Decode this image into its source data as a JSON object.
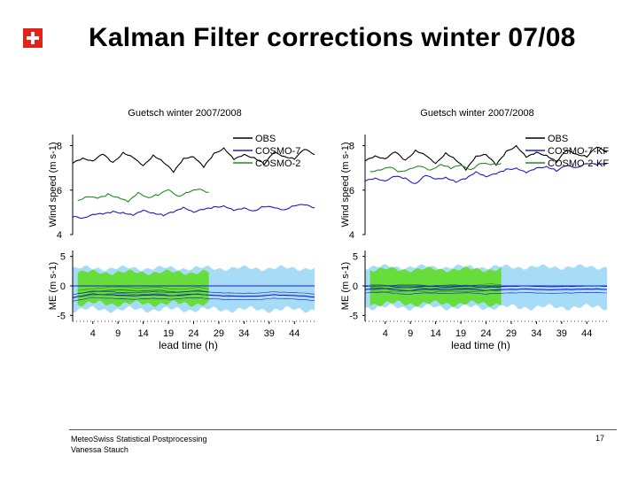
{
  "slide": {
    "title": "Kalman Filter corrections winter 07/08",
    "footer_line1": "MeteoSwiss Statistical Postprocessing",
    "footer_line2": "Vanessa Stauch",
    "page_number": "17"
  },
  "colors": {
    "obs": "#000000",
    "cosmo7": "#1c1cc8",
    "cosmo2": "#1f8c1f",
    "band7": "#a6dcf5",
    "band2": "#66dd3a",
    "flag": "#e2231a"
  },
  "chart_data": [
    {
      "type": "line",
      "title": "Guetsch winter 2007/2008",
      "xlabel": "lead time (h)",
      "ylabel_top": "Wind speed (m s-1)",
      "ylabel_bottom": "ME (m s-1)",
      "xlim": [
        0,
        48
      ],
      "xticks": [
        4,
        9,
        14,
        19,
        24,
        29,
        34,
        39,
        44
      ],
      "top_panel": {
        "ylim": [
          4,
          8.5
        ],
        "yticks": [
          4,
          6,
          8
        ],
        "series": [
          {
            "name": "OBS",
            "color_key": "obs",
            "x": [
              0,
              2,
              4,
              6,
              8,
              10,
              12,
              14,
              16,
              18,
              20,
              22,
              24,
              26,
              28,
              30,
              32,
              34,
              36,
              38,
              40,
              42,
              44,
              46,
              48
            ],
            "values": [
              7.2,
              7.4,
              7.3,
              7.6,
              7.2,
              7.7,
              7.5,
              7.1,
              7.6,
              7.3,
              6.8,
              7.4,
              7.5,
              7.0,
              7.6,
              7.9,
              7.4,
              7.6,
              7.5,
              7.2,
              7.7,
              7.5,
              7.4,
              7.8,
              7.6
            ]
          },
          {
            "name": "COSMO-7",
            "color_key": "cosmo7",
            "x": [
              0,
              2,
              4,
              6,
              8,
              10,
              12,
              14,
              16,
              18,
              20,
              22,
              24,
              26,
              28,
              30,
              32,
              34,
              36,
              38,
              40,
              42,
              44,
              46,
              48
            ],
            "values": [
              4.8,
              4.7,
              4.9,
              4.9,
              5.0,
              5.0,
              4.9,
              5.1,
              5.0,
              4.9,
              5.0,
              5.2,
              5.0,
              5.1,
              5.2,
              5.3,
              5.1,
              5.2,
              5.1,
              5.3,
              5.2,
              5.1,
              5.3,
              5.3,
              5.2
            ]
          },
          {
            "name": "COSMO-2",
            "color_key": "cosmo2",
            "x": [
              1,
              3,
              5,
              7,
              9,
              11,
              13,
              15,
              17,
              19,
              21,
              23,
              25,
              27
            ],
            "values": [
              5.5,
              5.7,
              5.6,
              5.8,
              5.7,
              5.5,
              5.9,
              5.7,
              5.8,
              6.0,
              5.7,
              5.9,
              6.0,
              5.9
            ]
          }
        ]
      },
      "bottom_panel": {
        "ylim": [
          -6,
          6
        ],
        "yticks": [
          5,
          0,
          -5
        ],
        "band_cosmo7": {
          "x_range": [
            0,
            48
          ],
          "upper": 3.0,
          "lower": -4.0
        },
        "band_cosmo2": {
          "x_range": [
            1,
            27
          ],
          "upper": 2.3,
          "lower": -3.0
        },
        "series": [
          {
            "name": "COSMO-7 ME",
            "color_key": "cosmo7",
            "x": [
              0,
              4,
              8,
              12,
              16,
              20,
              24,
              28,
              32,
              36,
              40,
              44,
              48
            ],
            "values": [
              -2.0,
              -1.4,
              -1.5,
              -1.7,
              -1.5,
              -1.6,
              -1.4,
              -1.6,
              -1.7,
              -1.8,
              -1.5,
              -1.6,
              -1.9
            ]
          },
          {
            "name": "COSMO-2 ME",
            "color_key": "cosmo2",
            "x": [
              1,
              5,
              9,
              13,
              17,
              21,
              25,
              27
            ],
            "values": [
              -1.3,
              -0.9,
              -0.6,
              -0.9,
              -0.7,
              -1.1,
              -0.8,
              -1.0
            ]
          }
        ]
      }
    },
    {
      "type": "line",
      "title": "Guetsch winter 2007/2008",
      "xlabel": "lead time (h)",
      "ylabel_top": "Wind speed (m s-1)",
      "ylabel_bottom": "ME (m s-1)",
      "xlim": [
        0,
        48
      ],
      "xticks": [
        4,
        9,
        14,
        19,
        24,
        29,
        34,
        39,
        44
      ],
      "top_panel": {
        "ylim": [
          4,
          8.5
        ],
        "yticks": [
          4,
          6,
          8
        ],
        "series": [
          {
            "name": "OBS",
            "color_key": "obs",
            "x": [
              0,
              2,
              4,
              6,
              8,
              10,
              12,
              14,
              16,
              18,
              20,
              22,
              24,
              26,
              28,
              30,
              32,
              34,
              36,
              38,
              40,
              42,
              44,
              46,
              48
            ],
            "values": [
              7.3,
              7.5,
              7.4,
              7.7,
              7.3,
              7.8,
              7.6,
              7.2,
              7.7,
              7.4,
              6.9,
              7.5,
              7.6,
              7.1,
              7.7,
              8.0,
              7.5,
              7.7,
              7.6,
              7.3,
              7.8,
              7.6,
              7.5,
              7.9,
              7.7
            ]
          },
          {
            "name": "COSMO-7-KF",
            "color_key": "cosmo7",
            "x": [
              0,
              2,
              4,
              6,
              8,
              10,
              12,
              14,
              16,
              18,
              20,
              22,
              24,
              26,
              28,
              30,
              32,
              34,
              36,
              38,
              40,
              42,
              44,
              46,
              48
            ],
            "values": [
              6.4,
              6.5,
              6.4,
              6.6,
              6.5,
              6.3,
              6.7,
              6.5,
              6.6,
              6.4,
              6.5,
              6.8,
              6.6,
              6.7,
              6.9,
              7.0,
              6.8,
              7.0,
              7.1,
              6.9,
              7.1,
              7.0,
              7.2,
              7.1,
              7.2
            ]
          },
          {
            "name": "COSMO-2-KF",
            "color_key": "cosmo2",
            "x": [
              1,
              3,
              5,
              7,
              9,
              11,
              13,
              15,
              17,
              19,
              21,
              23,
              25,
              27
            ],
            "values": [
              6.8,
              6.9,
              7.0,
              6.8,
              7.0,
              7.1,
              6.9,
              7.2,
              7.0,
              7.1,
              6.9,
              7.2,
              7.1,
              7.2
            ]
          }
        ]
      },
      "bottom_panel": {
        "ylim": [
          -6,
          6
        ],
        "yticks": [
          5,
          0,
          -5
        ],
        "band_cosmo7": {
          "x_range": [
            0,
            48
          ],
          "upper": 3.2,
          "lower": -3.6
        },
        "band_cosmo2": {
          "x_range": [
            1,
            27
          ],
          "upper": 2.8,
          "lower": -3.0
        },
        "series": [
          {
            "name": "COSMO-7-KF ME",
            "color_key": "cosmo7",
            "x": [
              0,
              4,
              8,
              12,
              16,
              20,
              24,
              28,
              32,
              36,
              40,
              44,
              48
            ],
            "values": [
              -0.6,
              -0.5,
              -0.8,
              -0.6,
              -0.7,
              -0.5,
              -0.8,
              -0.6,
              -0.5,
              -0.7,
              -0.6,
              -0.5,
              -0.6
            ]
          },
          {
            "name": "COSMO-2-KF ME",
            "color_key": "cosmo2",
            "x": [
              1,
              5,
              9,
              13,
              17,
              21,
              25,
              27
            ],
            "values": [
              -0.3,
              -0.4,
              -0.2,
              -0.5,
              -0.3,
              -0.4,
              -0.2,
              -0.3
            ]
          }
        ]
      }
    }
  ]
}
